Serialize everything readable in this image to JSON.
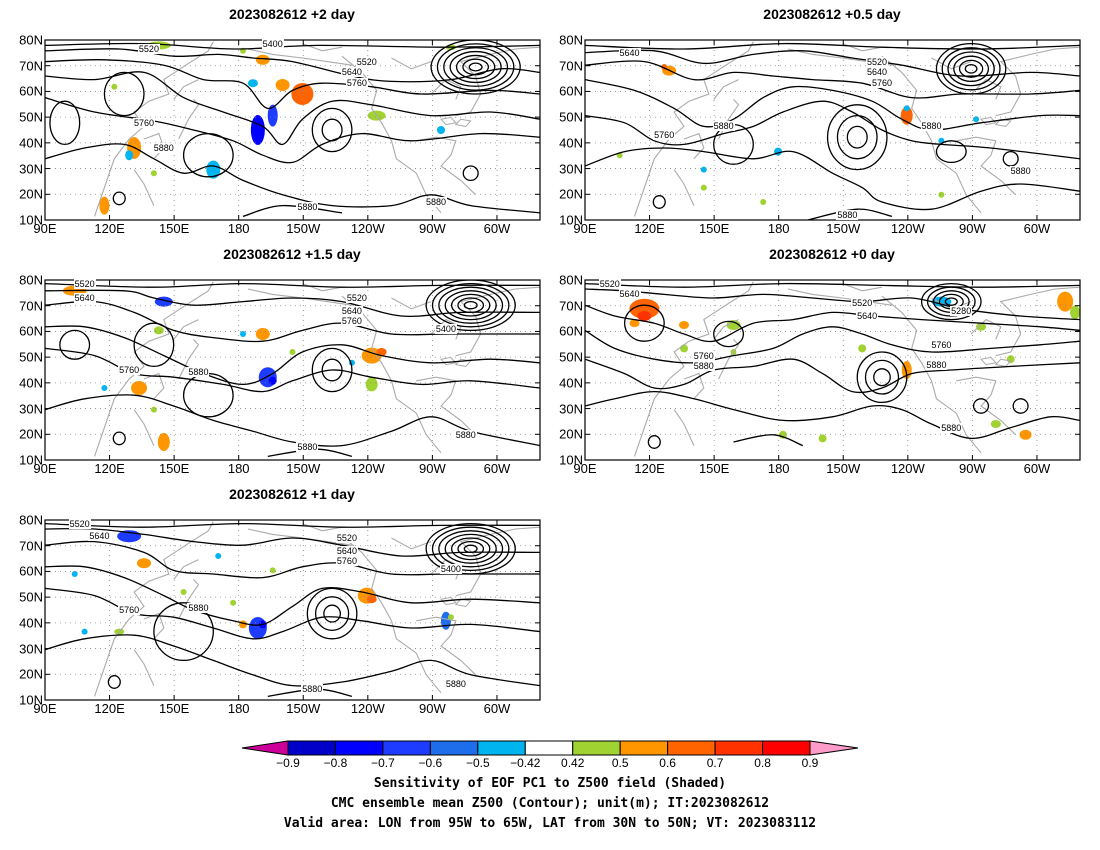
{
  "panels": [
    {
      "title": "2023082612 +2 day",
      "contour_labels": [
        "5400",
        "5520",
        "5520",
        "5640",
        "5760",
        "5760",
        "5880",
        "5880",
        "5880"
      ]
    },
    {
      "title": "2023082612 +0.5 day",
      "contour_labels": [
        "5640",
        "5520",
        "5640",
        "5760",
        "5760",
        "5880",
        "5880",
        "5880",
        "5880"
      ]
    },
    {
      "title": "2023082612 +1.5 day",
      "contour_labels": [
        "5520",
        "5640",
        "5520",
        "5640",
        "5760",
        "5400",
        "5760",
        "5880",
        "5880",
        "5880"
      ]
    },
    {
      "title": "2023082612 +0 day",
      "contour_labels": [
        "5520",
        "5640",
        "5520",
        "5640",
        "5280",
        "5760",
        "5760",
        "5880",
        "5880",
        "5880"
      ]
    },
    {
      "title": "2023082612 +1 day",
      "contour_labels": [
        "5520",
        "5640",
        "5520",
        "5640",
        "5760",
        "5400",
        "5760",
        "5880",
        "5880",
        "5880"
      ]
    }
  ],
  "axes": {
    "lat_labels": [
      "80N",
      "70N",
      "60N",
      "50N",
      "40N",
      "30N",
      "20N",
      "10N"
    ],
    "lon_labels": [
      "90E",
      "120E",
      "150E",
      "180",
      "150W",
      "120W",
      "90W",
      "60W"
    ],
    "lon_range": [
      90,
      320
    ],
    "lat_range": [
      10,
      80
    ]
  },
  "colorbar": {
    "tick_labels": [
      "−0.9",
      "−0.8",
      "−0.7",
      "−0.6",
      "−0.5",
      "−0.42",
      "0.42",
      "0.5",
      "0.6",
      "0.7",
      "0.8",
      "0.9"
    ],
    "bins": [
      -0.9,
      -0.8,
      -0.7,
      -0.6,
      -0.5,
      -0.42,
      0.42,
      0.5,
      0.6,
      0.7,
      0.8,
      0.9
    ],
    "colors": {
      "below": "#cc0099",
      "neg": [
        "#0000c8",
        "#0000ff",
        "#1e3cff",
        "#1e6eeb",
        "#00b4f0"
      ],
      "zero": "#ffffff",
      "pos": [
        "#a0d232",
        "#ff9600",
        "#ff6400",
        "#ff3200",
        "#ff0000"
      ],
      "above": "#ff9bc8"
    }
  },
  "colors": {
    "contour": "#000000",
    "coast": "#aaaaaa",
    "grid": "#888888"
  },
  "caption": {
    "line1": "Sensitivity of EOF PC1 to Z500 field (Shaded)",
    "line2": "CMC ensemble mean Z500 (Contour); unit(m); IT:2023082612",
    "line3": "Valid area: LON from 95W to 65W, LAT from 30N to 50N; VT: 2023083112"
  }
}
